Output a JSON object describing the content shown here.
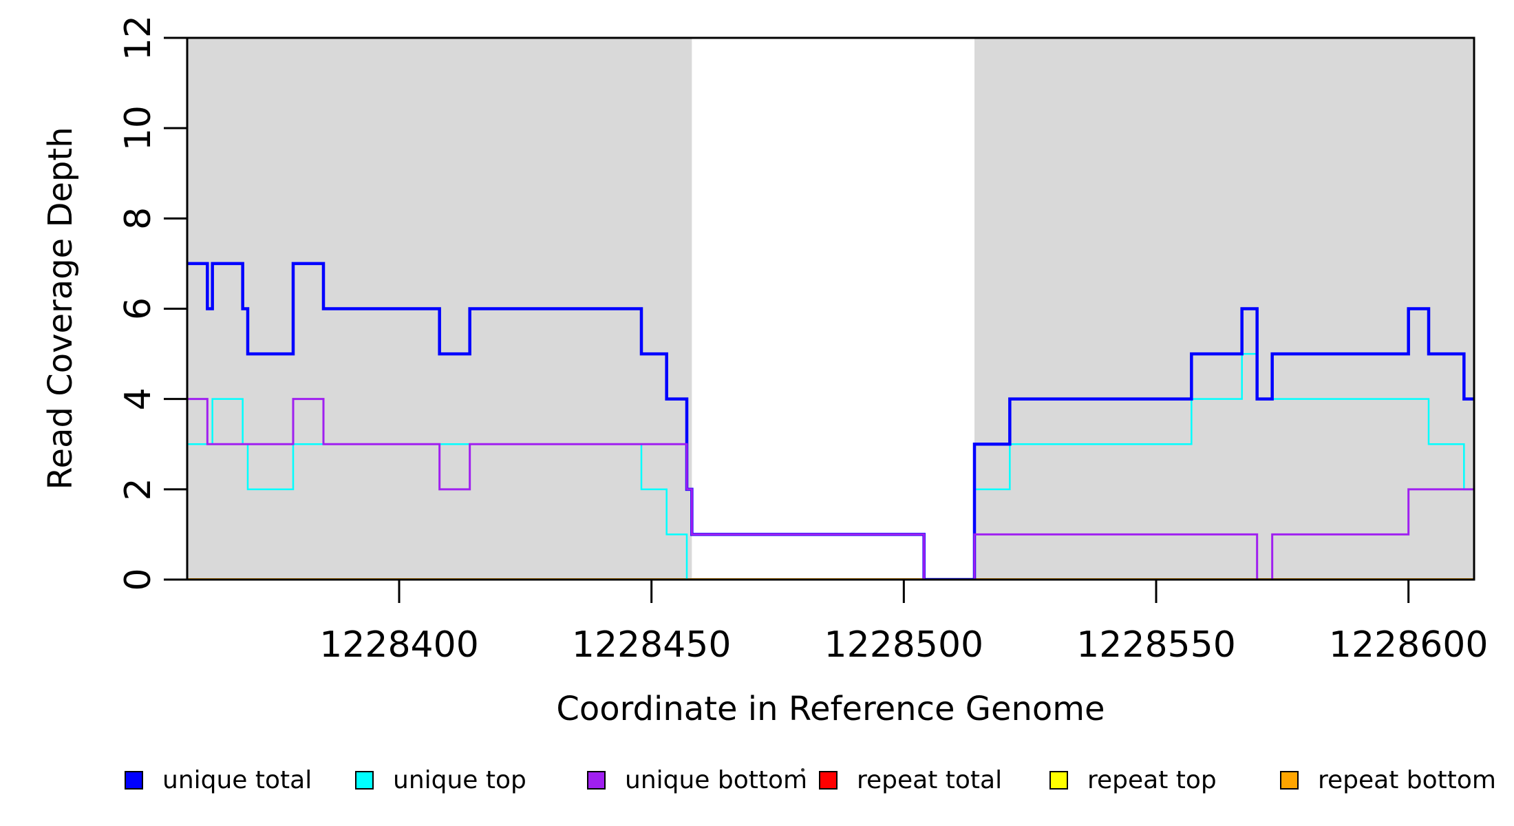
{
  "chart_data": {
    "type": "line",
    "subtype": "step-coverage",
    "title": "",
    "xlabel": "Coordinate in Reference Genome",
    "ylabel": "Read Coverage Depth",
    "xlim": [
      1228358,
      1228613
    ],
    "ylim": [
      0,
      12
    ],
    "x_ticks": [
      1228400,
      1228450,
      1228500,
      1228550,
      1228600
    ],
    "y_ticks": [
      0,
      2,
      4,
      6,
      8,
      10,
      12
    ],
    "grid": false,
    "legend_position": "bottom",
    "background_color": "#ffffff",
    "shade_color": "#d9d9d9",
    "box_color": "#000000",
    "shaded_regions": [
      {
        "x0": 1228358,
        "x1": 1228458
      },
      {
        "x0": 1228514,
        "x1": 1228613
      }
    ],
    "series": [
      {
        "name": "unique total",
        "color": "#0000ff",
        "width": 4.5,
        "segments": [
          [
            1228358,
            1228362,
            7
          ],
          [
            1228362,
            1228363,
            6
          ],
          [
            1228363,
            1228369,
            7
          ],
          [
            1228369,
            1228370,
            6
          ],
          [
            1228370,
            1228379,
            5
          ],
          [
            1228379,
            1228385,
            7
          ],
          [
            1228385,
            1228408,
            6
          ],
          [
            1228408,
            1228414,
            5
          ],
          [
            1228414,
            1228448,
            6
          ],
          [
            1228448,
            1228453,
            5
          ],
          [
            1228453,
            1228457,
            4
          ],
          [
            1228457,
            1228458,
            2
          ],
          [
            1228458,
            1228504,
            1
          ],
          [
            1228504,
            1228514,
            0
          ],
          [
            1228514,
            1228521,
            3
          ],
          [
            1228521,
            1228557,
            4
          ],
          [
            1228557,
            1228567,
            5
          ],
          [
            1228567,
            1228570,
            6
          ],
          [
            1228570,
            1228573,
            4
          ],
          [
            1228573,
            1228600,
            5
          ],
          [
            1228600,
            1228604,
            6
          ],
          [
            1228604,
            1228611,
            5
          ],
          [
            1228611,
            1228613,
            4
          ]
        ]
      },
      {
        "name": "unique top",
        "color": "#00ffff",
        "width": 2.5,
        "segments": [
          [
            1228358,
            1228363,
            3
          ],
          [
            1228363,
            1228369,
            4
          ],
          [
            1228369,
            1228370,
            3
          ],
          [
            1228370,
            1228379,
            2
          ],
          [
            1228379,
            1228448,
            3
          ],
          [
            1228448,
            1228453,
            2
          ],
          [
            1228453,
            1228457,
            1
          ],
          [
            1228457,
            1228514,
            0
          ],
          [
            1228514,
            1228521,
            2
          ],
          [
            1228521,
            1228557,
            3
          ],
          [
            1228557,
            1228567,
            4
          ],
          [
            1228567,
            1228570,
            5
          ],
          [
            1228570,
            1228604,
            4
          ],
          [
            1228604,
            1228611,
            3
          ],
          [
            1228611,
            1228613,
            2
          ]
        ]
      },
      {
        "name": "unique bottom",
        "color": "#a020f0",
        "width": 3,
        "segments": [
          [
            1228358,
            1228362,
            4
          ],
          [
            1228362,
            1228379,
            3
          ],
          [
            1228379,
            1228385,
            4
          ],
          [
            1228385,
            1228408,
            3
          ],
          [
            1228408,
            1228414,
            2
          ],
          [
            1228414,
            1228457,
            3
          ],
          [
            1228457,
            1228458,
            2
          ],
          [
            1228458,
            1228504,
            1
          ],
          [
            1228504,
            1228514,
            0
          ],
          [
            1228514,
            1228570,
            1
          ],
          [
            1228570,
            1228573,
            0
          ],
          [
            1228573,
            1228600,
            1
          ],
          [
            1228600,
            1228613,
            2
          ]
        ]
      },
      {
        "name": "repeat total",
        "color": "#ff0000",
        "width": 2.5,
        "segments": [
          [
            1228358,
            1228613,
            0
          ]
        ]
      },
      {
        "name": "repeat top",
        "color": "#ffff00",
        "width": 2.5,
        "segments": [
          [
            1228358,
            1228613,
            0
          ]
        ]
      },
      {
        "name": "repeat bottom",
        "color": "#ffa500",
        "width": 4,
        "segments": [
          [
            1228358,
            1228613,
            0
          ]
        ]
      }
    ],
    "draw_order": [
      3,
      4,
      5,
      1,
      0,
      2
    ],
    "legend": [
      {
        "label": "unique total",
        "color": "#0000ff"
      },
      {
        "label": "unique top",
        "color": "#00ffff"
      },
      {
        "label": "unique bottom",
        "color": "#a020f0"
      },
      {
        "label": "repeat total",
        "color": "#ff0000"
      },
      {
        "label": "repeat top",
        "color": "#ffff00"
      },
      {
        "label": "repeat bottom",
        "color": "#ffa500"
      }
    ]
  }
}
